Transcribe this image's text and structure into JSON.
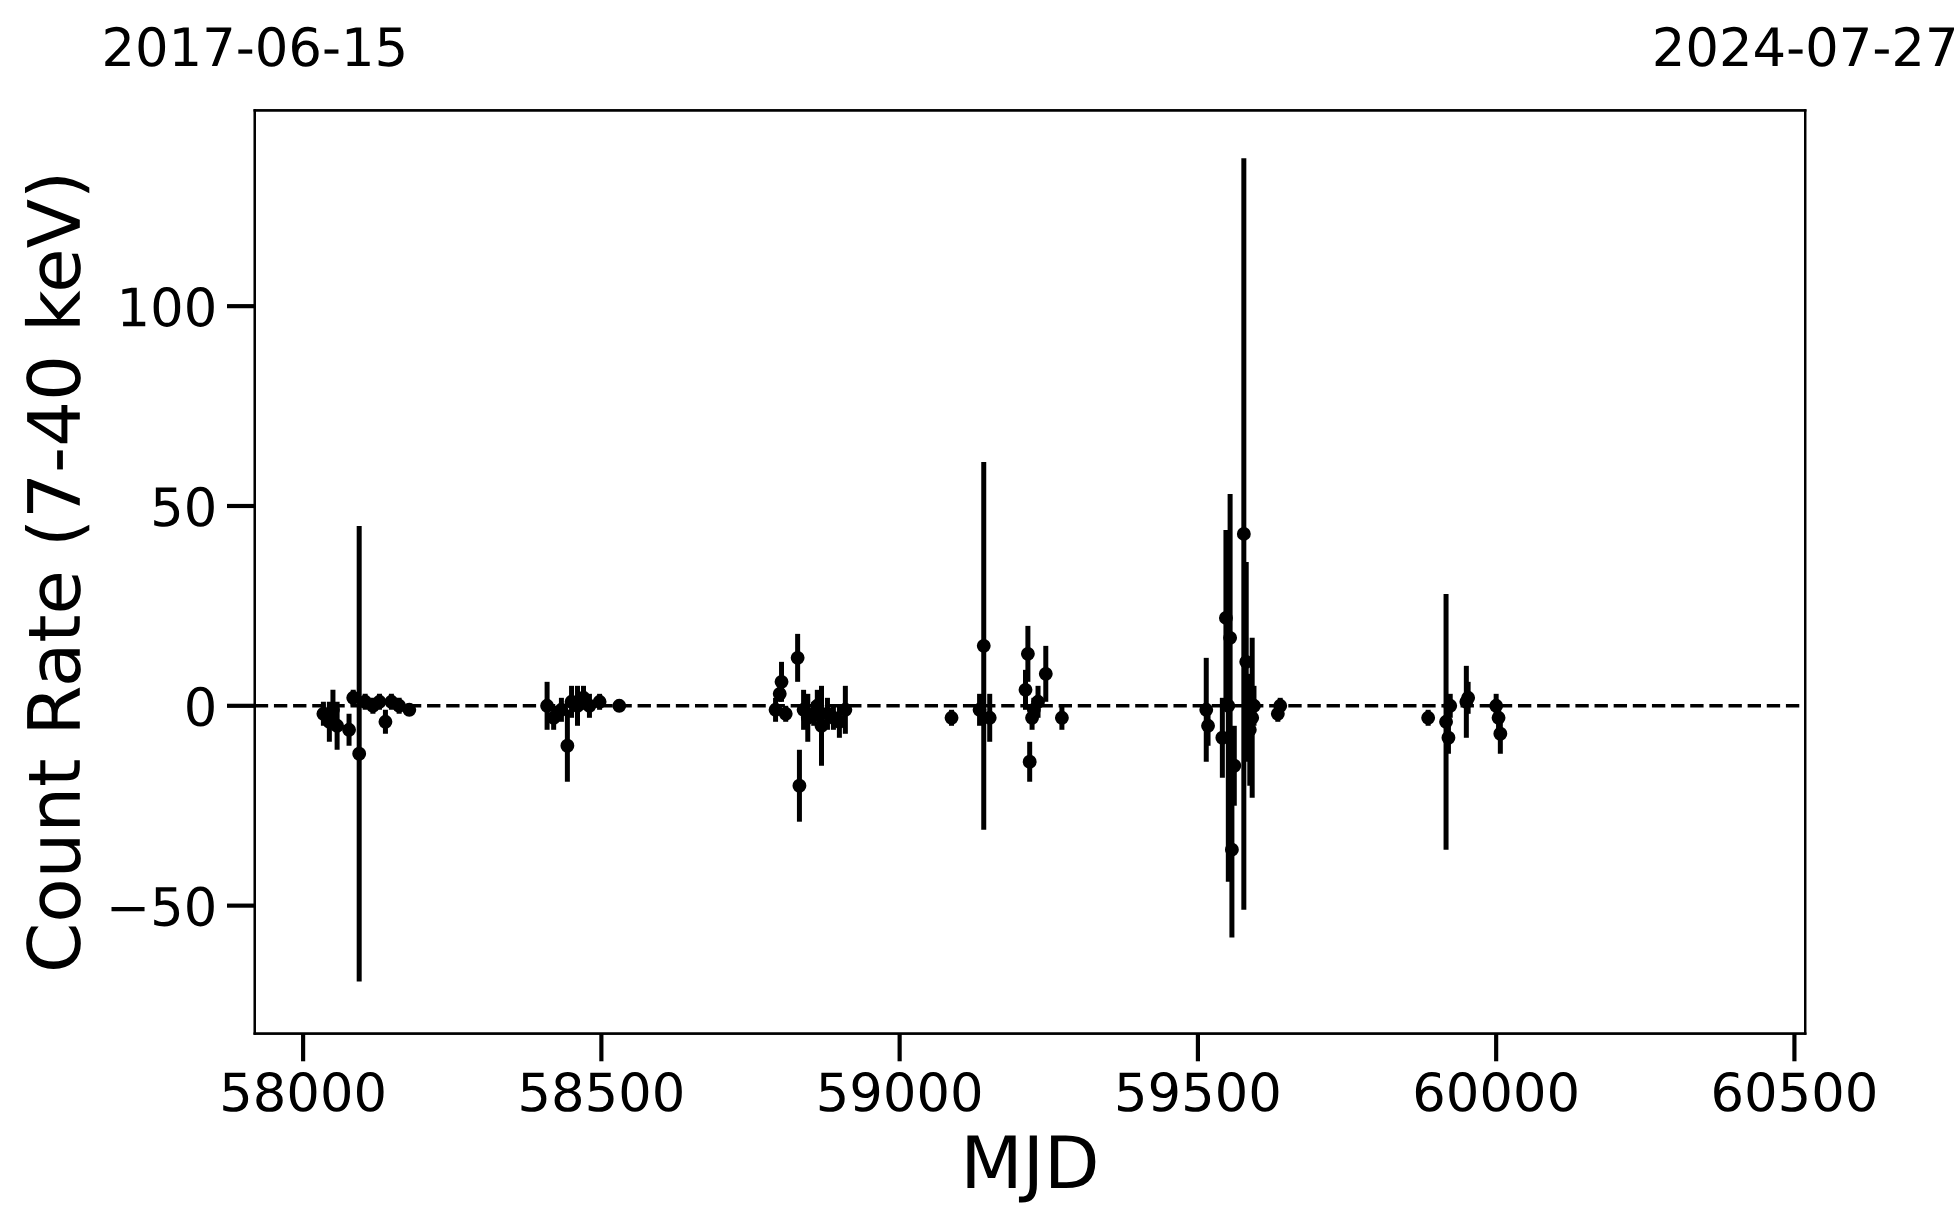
{
  "chart_data": {
    "type": "scatter",
    "xlabel": "MJD",
    "ylabel": "Count Rate (7-40 keV)",
    "x": [
      58034,
      58044,
      58050,
      58057,
      58077,
      58094,
      58084,
      58104,
      58117,
      58128,
      58138,
      58148,
      58161,
      58178,
      58409,
      58420,
      58433,
      58443,
      58450,
      58460,
      58470,
      58480,
      58497,
      58530,
      58792,
      58799,
      58802,
      58809,
      58829,
      58832,
      58839,
      58846,
      58856,
      58862,
      58869,
      58879,
      58889,
      58899,
      58909,
      59087,
      59134,
      59141,
      59151,
      59211,
      59215,
      59218,
      59222,
      59225,
      59232,
      59245,
      59272,
      59514,
      59517,
      59541,
      59547,
      59551,
      59554,
      59557,
      59561,
      59577,
      59581,
      59587,
      59591,
      59594,
      59634,
      59638,
      59886,
      59916,
      59920,
      59923,
      59950,
      59953,
      60000,
      60004,
      60007
    ],
    "series": [
      {
        "color": "#000000",
        "values": [
          -2,
          -4,
          -1,
          -5,
          -6,
          -12,
          2,
          1,
          0,
          1,
          -4,
          1,
          0,
          -1,
          0,
          -3,
          -1,
          -10,
          1,
          0,
          2,
          0,
          1,
          0,
          -1,
          3,
          6,
          -2,
          12,
          -20,
          -1,
          -3,
          -2,
          0,
          -5,
          -2,
          -3,
          -4,
          -1,
          -3,
          -1,
          15,
          -3,
          4,
          13,
          -14,
          -3,
          -1,
          1,
          8,
          -3,
          -1,
          -5,
          -8,
          22,
          0,
          17,
          -36,
          -15,
          43,
          11,
          -6,
          -3,
          0,
          -2,
          0,
          -3,
          -4,
          -8,
          0,
          1,
          2,
          0,
          -3,
          -7
        ],
        "errors": [
          3,
          5,
          5,
          6,
          4,
          57,
          2,
          2,
          2,
          2,
          3,
          2,
          2,
          1.5,
          6,
          3,
          3,
          9,
          4,
          5,
          3,
          3,
          2,
          1.5,
          3,
          2,
          5,
          2,
          6,
          9,
          5,
          6,
          3,
          4,
          10,
          4,
          3,
          4,
          6,
          2,
          4,
          46,
          6,
          5,
          7,
          5,
          3,
          3,
          4,
          7,
          3,
          13,
          5,
          10,
          22,
          44,
          36,
          22,
          10,
          94,
          25,
          14,
          20,
          5,
          2,
          2,
          2,
          32,
          4,
          3,
          9,
          4,
          3,
          3,
          5
        ]
      }
    ],
    "xlim": [
      57919,
      60518
    ],
    "xticks": [
      58000,
      58500,
      59000,
      59500,
      60000,
      60500
    ],
    "ylim": [
      -82,
      149
    ],
    "yticks": [
      {
        "value": -50,
        "label": "−50"
      },
      0,
      50,
      100
    ],
    "x2lim": [
      "2017-06-15",
      "2024-07-27"
    ],
    "x2ticks": [
      "2017-06-15",
      "2024-07-27"
    ],
    "ref_lines": [
      {
        "axis": "y",
        "value": 0,
        "color": "#000000",
        "line_style": "dashed"
      }
    ],
    "marker": "circle",
    "grid": false,
    "legend": false
  }
}
